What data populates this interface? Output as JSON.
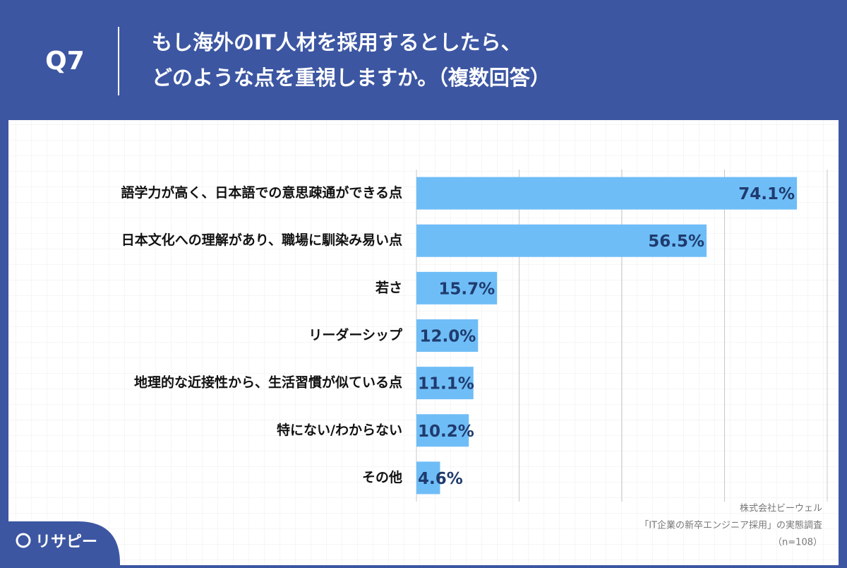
{
  "question_number": "Q7",
  "title_lines": [
    "もし海外のIT人材を採用するとしたら、",
    "どのような点を重視しますか。（複数回答）"
  ],
  "brand": "リサピー",
  "chart_data": {
    "type": "barh",
    "categories": [
      "語学力が高く、日本語での意思疎通ができる点",
      "日本文化への理解があり、職場に馴染み易い点",
      "若さ",
      "リーダーシップ",
      "地理的な近接性から、生活習慣が似ている点",
      "特にない/わからない",
      "その他"
    ],
    "values": [
      74.1,
      56.5,
      15.7,
      12.0,
      11.1,
      10.2,
      4.6
    ],
    "value_labels": [
      "74.1%",
      "56.5%",
      "15.7%",
      "12.0%",
      "11.1%",
      "10.2%",
      "4.6%"
    ],
    "color": "#6fbdf7",
    "xlim": [
      0,
      80
    ],
    "xticks": [
      0,
      20,
      40,
      60,
      80
    ],
    "grid": true,
    "source": [
      "株式会社ビーウェル",
      "「IT企業の新卒エンジニア採用」の実態調査",
      "（n=108）"
    ]
  }
}
